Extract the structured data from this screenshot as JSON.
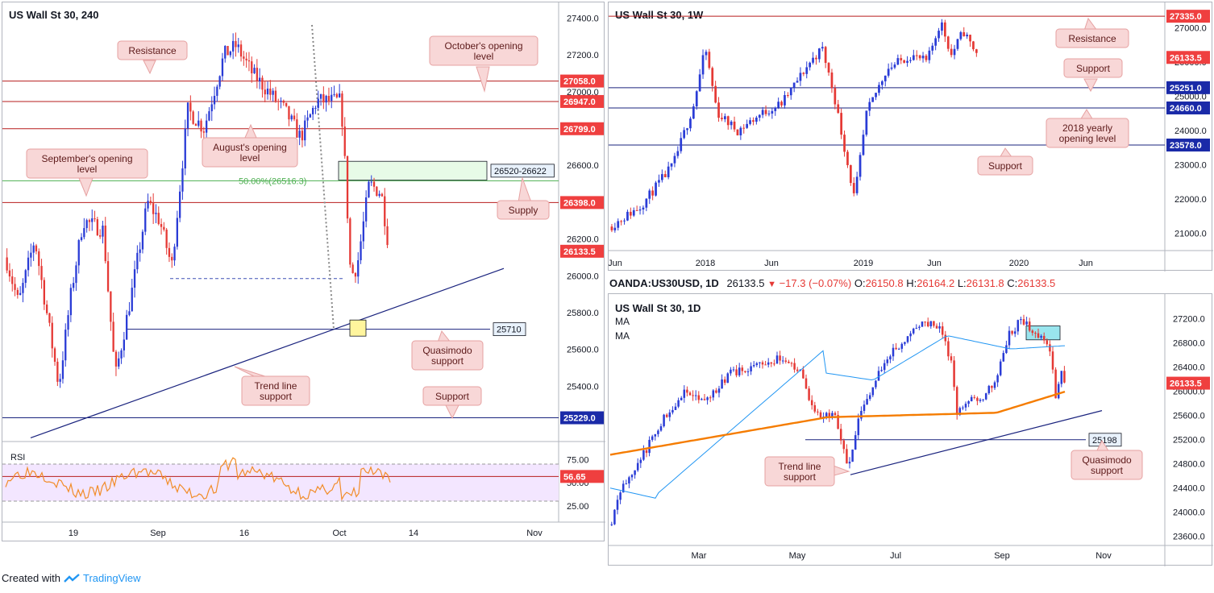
{
  "footer": {
    "created_with": "Created with",
    "brand": "TradingView",
    "logo_icon": "tradingview-logo-icon"
  },
  "colors": {
    "bull": "#2a3cd6",
    "bear": "#e53935",
    "resistance_line": "#b71c1c",
    "support_line": "#1a237e",
    "label_fill": "#f8d7d7",
    "label_border": "#e6a1a1",
    "label_text": "#5d1a1a",
    "price_tag": "#ef3f3f",
    "blue_tag": "#1a2aa8",
    "ma_blue": "#2196f3",
    "ma_orange": "#f57c00",
    "rsi_line": "#f28c28",
    "rsi_band": "#f3e6ff",
    "supply_box": "#e7fbe7"
  },
  "chart_data": [
    {
      "id": "h4",
      "type": "candlestick",
      "title": "US Wall St 30, 240",
      "ylim": [
        25100,
        27450
      ],
      "yticks": [
        27400,
        27200,
        27000,
        26800,
        26600,
        26400,
        26200,
        26000,
        25800,
        25600,
        25400
      ],
      "xticks": [
        "19",
        "Sep",
        "16",
        "Oct",
        "14",
        "Nov"
      ],
      "price_tags": [
        {
          "value": 27058.0,
          "text": "27058.0",
          "kind": "resistance"
        },
        {
          "value": 26947.0,
          "text": "26947.0",
          "kind": "resistance"
        },
        {
          "value": 26799.0,
          "text": "26799.0",
          "kind": "resistance"
        },
        {
          "value": 26398.0,
          "text": "26398.0",
          "kind": "resistance"
        },
        {
          "value": 26133.5,
          "text": "26133.5",
          "kind": "price"
        },
        {
          "value": 25229.0,
          "text": "25229.0",
          "kind": "support"
        }
      ],
      "level_labels": [
        {
          "value": 26571,
          "text": "26520-26622"
        },
        {
          "value": 25710,
          "text": "25710"
        }
      ],
      "fib_label": "50.00%(26516.3)",
      "annotations": [
        {
          "id": "resistance",
          "lines": [
            "Resistance"
          ]
        },
        {
          "id": "octobers-opening-level",
          "lines": [
            "October's opening",
            "level"
          ]
        },
        {
          "id": "augusts-opening-level",
          "lines": [
            "August's opening",
            "level"
          ]
        },
        {
          "id": "septembers-opening-level",
          "lines": [
            "September's opening",
            "level"
          ]
        },
        {
          "id": "supply",
          "lines": [
            "Supply"
          ]
        },
        {
          "id": "quasimodo-support",
          "lines": [
            "Quasimodo",
            "support"
          ]
        },
        {
          "id": "trend-line-support",
          "lines": [
            "Trend line",
            "support"
          ]
        },
        {
          "id": "support",
          "lines": [
            "Support"
          ]
        }
      ],
      "rsi": {
        "label": "RSI",
        "ylim": [
          10,
          90
        ],
        "yticks": [
          75.0,
          50.0,
          25.0
        ],
        "current": 56.65,
        "current_text": "56.65",
        "band": [
          30,
          70
        ]
      }
    },
    {
      "id": "weekly",
      "type": "candlestick",
      "title": "US Wall St 30, 1W",
      "ylim": [
        20500,
        27550
      ],
      "yticks": [
        27000,
        26000,
        25000,
        24000,
        23000,
        22000,
        21000
      ],
      "xticks": [
        "Jun",
        "2018",
        "Jun",
        "2019",
        "Jun",
        "2020",
        "Jun"
      ],
      "price_tags": [
        {
          "value": 27335.0,
          "text": "27335.0",
          "kind": "resistance"
        },
        {
          "value": 26133.5,
          "text": "26133.5",
          "kind": "price"
        },
        {
          "value": 25251.0,
          "text": "25251.0",
          "kind": "support"
        },
        {
          "value": 24660.0,
          "text": "24660.0",
          "kind": "support"
        },
        {
          "value": 23578.0,
          "text": "23578.0",
          "kind": "support"
        }
      ],
      "annotations": [
        {
          "id": "resistance",
          "lines": [
            "Resistance"
          ]
        },
        {
          "id": "support-upper",
          "lines": [
            "Support"
          ]
        },
        {
          "id": "yearly-opening-level-2018",
          "lines": [
            "2018 yearly",
            "opening level"
          ]
        },
        {
          "id": "support-lower",
          "lines": [
            "Support"
          ]
        }
      ]
    },
    {
      "id": "daily",
      "type": "candlestick",
      "title": "US Wall St 30, 1D",
      "header": {
        "symbol": "OANDA:US30USD, 1D",
        "price": "26133.5",
        "change": "−17.3 (−0.07%)",
        "open_label": "O:",
        "open": "26150.8",
        "high_label": "H:",
        "high": "26164.2",
        "low_label": "L:",
        "low": "26131.8",
        "close_label": "C:",
        "close": "26133.5"
      },
      "ma_labels": [
        "MA",
        "MA"
      ],
      "ylim": [
        23450,
        27500
      ],
      "yticks": [
        27200,
        26800,
        26400,
        26000,
        25600,
        25200,
        24800,
        24400,
        24000,
        23600
      ],
      "xticks": [
        "Mar",
        "May",
        "Jul",
        "Sep",
        "Nov"
      ],
      "price_tags": [
        {
          "value": 26133.5,
          "text": "26133.5",
          "kind": "price"
        }
      ],
      "level_labels": [
        {
          "value": 25198,
          "text": "25198"
        }
      ],
      "annotations": [
        {
          "id": "trend-line-support",
          "lines": [
            "Trend line",
            "support"
          ]
        },
        {
          "id": "quasimodo-support",
          "lines": [
            "Quasimodo",
            "support"
          ]
        }
      ]
    }
  ]
}
